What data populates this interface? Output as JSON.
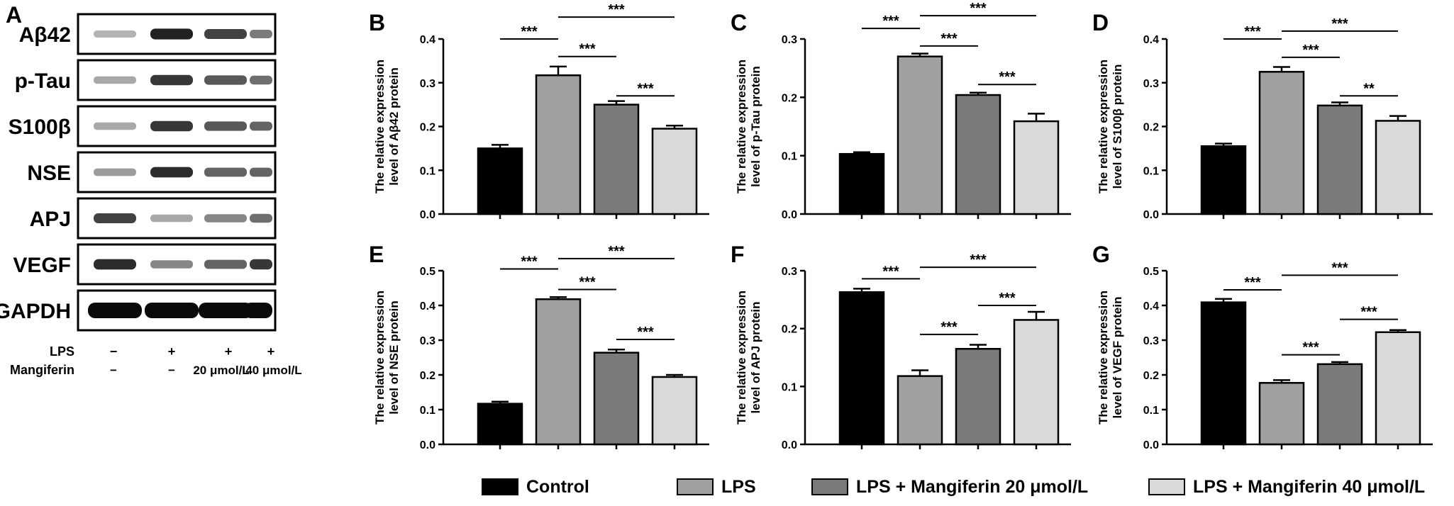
{
  "panel_a": {
    "letter": "A",
    "proteins": [
      "Aβ42",
      "p-Tau",
      "S100β",
      "NSE",
      "APJ",
      "VEGF",
      "GAPDH"
    ],
    "conditions": {
      "lps_label": "LPS",
      "lps_values": [
        "−",
        "+",
        "+",
        "+"
      ],
      "mangiferin_label": "Mangiferin",
      "mangiferin_values": [
        "−",
        "−",
        "20 μmol/L",
        "40 μmol/L"
      ]
    },
    "band_intensity": [
      [
        0.25,
        0.9,
        0.75,
        0.5
      ],
      [
        0.3,
        0.8,
        0.65,
        0.55
      ],
      [
        0.3,
        0.8,
        0.65,
        0.6
      ],
      [
        0.35,
        0.85,
        0.6,
        0.6
      ],
      [
        0.75,
        0.3,
        0.45,
        0.55
      ],
      [
        0.85,
        0.45,
        0.6,
        0.8
      ],
      [
        1.0,
        1.0,
        1.0,
        1.0
      ]
    ]
  },
  "legend": {
    "items": [
      {
        "label": "Control",
        "color": "#000000"
      },
      {
        "label": "LPS",
        "color": "#a0a0a0"
      },
      {
        "label": "LPS + Mangiferin 20 μmol/L",
        "color": "#7a7a7a"
      },
      {
        "label": "LPS + Mangiferin 40 μmol/L",
        "color": "#d9d9d9"
      }
    ]
  },
  "chart_data": [
    {
      "type": "bar",
      "letter": "B",
      "ylabel_line1": "The relative expression",
      "ylabel_line2": "level of Aβ42 protein",
      "ylim": [
        0,
        0.4
      ],
      "yticks": [
        "0.0",
        "0.1",
        "0.2",
        "0.3",
        "0.4"
      ],
      "values": [
        0.15,
        0.317,
        0.25,
        0.195
      ],
      "errors": [
        0.008,
        0.02,
        0.008,
        0.007
      ],
      "significance": [
        {
          "from": 0,
          "to": 1,
          "label": "***",
          "y": 0.4
        },
        {
          "from": 1,
          "to": 3,
          "label": "***",
          "y": 0.45
        },
        {
          "from": 1,
          "to": 2,
          "label": "***",
          "y": 0.36
        },
        {
          "from": 2,
          "to": 3,
          "label": "***",
          "y": 0.27
        }
      ]
    },
    {
      "type": "bar",
      "letter": "C",
      "ylabel_line1": "The relative expression",
      "ylabel_line2": "level of p-Tau protein",
      "ylim": [
        0,
        0.3
      ],
      "yticks": [
        "0.0",
        "0.1",
        "0.2",
        "0.3"
      ],
      "values": [
        0.103,
        0.27,
        0.204,
        0.159
      ],
      "errors": [
        0.003,
        0.005,
        0.004,
        0.013
      ],
      "significance": [
        {
          "from": 0,
          "to": 1,
          "label": "***",
          "y": 0.318
        },
        {
          "from": 1,
          "to": 3,
          "label": "***",
          "y": 0.34
        },
        {
          "from": 1,
          "to": 2,
          "label": "***",
          "y": 0.288
        },
        {
          "from": 2,
          "to": 3,
          "label": "***",
          "y": 0.222
        }
      ]
    },
    {
      "type": "bar",
      "letter": "D",
      "ylabel_line1": "The relative expression",
      "ylabel_line2": "level of S100β protein",
      "ylim": [
        0,
        0.4
      ],
      "yticks": [
        "0.0",
        "0.1",
        "0.2",
        "0.3",
        "0.4"
      ],
      "values": [
        0.155,
        0.325,
        0.248,
        0.213
      ],
      "errors": [
        0.006,
        0.011,
        0.007,
        0.011
      ],
      "significance": [
        {
          "from": 0,
          "to": 1,
          "label": "***",
          "y": 0.4
        },
        {
          "from": 1,
          "to": 3,
          "label": "***",
          "y": 0.418
        },
        {
          "from": 1,
          "to": 2,
          "label": "***",
          "y": 0.358
        },
        {
          "from": 2,
          "to": 3,
          "label": "**",
          "y": 0.27
        }
      ]
    },
    {
      "type": "bar",
      "letter": "E",
      "ylabel_line1": "The relative expression",
      "ylabel_line2": "level of NSE protein",
      "ylim": [
        0,
        0.5
      ],
      "yticks": [
        "0.0",
        "0.1",
        "0.2",
        "0.3",
        "0.4",
        "0.5"
      ],
      "values": [
        0.117,
        0.418,
        0.264,
        0.194
      ],
      "errors": [
        0.006,
        0.006,
        0.009,
        0.006
      ],
      "significance": [
        {
          "from": 0,
          "to": 1,
          "label": "***",
          "y": 0.505
        },
        {
          "from": 1,
          "to": 3,
          "label": "***",
          "y": 0.535
        },
        {
          "from": 1,
          "to": 2,
          "label": "***",
          "y": 0.446
        },
        {
          "from": 2,
          "to": 3,
          "label": "***",
          "y": 0.302
        }
      ]
    },
    {
      "type": "bar",
      "letter": "F",
      "ylabel_line1": "The relative expression",
      "ylabel_line2": "level of APJ protein",
      "ylim": [
        0,
        0.3
      ],
      "yticks": [
        "0.0",
        "0.1",
        "0.2",
        "0.3"
      ],
      "values": [
        0.263,
        0.118,
        0.165,
        0.215
      ],
      "errors": [
        0.006,
        0.01,
        0.007,
        0.014
      ],
      "significance": [
        {
          "from": 0,
          "to": 1,
          "label": "***",
          "y": 0.286
        },
        {
          "from": 1,
          "to": 3,
          "label": "***",
          "y": 0.306
        },
        {
          "from": 1,
          "to": 2,
          "label": "***",
          "y": 0.19
        },
        {
          "from": 2,
          "to": 3,
          "label": "***",
          "y": 0.24
        }
      ]
    },
    {
      "type": "bar",
      "letter": "G",
      "ylabel_line1": "The relative expression",
      "ylabel_line2": "level of VEGF protein",
      "ylim": [
        0,
        0.5
      ],
      "yticks": [
        "0.0",
        "0.1",
        "0.2",
        "0.3",
        "0.4",
        "0.5"
      ],
      "values": [
        0.409,
        0.177,
        0.231,
        0.323
      ],
      "errors": [
        0.01,
        0.008,
        0.006,
        0.006
      ],
      "significance": [
        {
          "from": 0,
          "to": 1,
          "label": "***",
          "y": 0.445
        },
        {
          "from": 1,
          "to": 3,
          "label": "***",
          "y": 0.487
        },
        {
          "from": 1,
          "to": 2,
          "label": "***",
          "y": 0.258
        },
        {
          "from": 2,
          "to": 3,
          "label": "***",
          "y": 0.36
        }
      ]
    }
  ]
}
